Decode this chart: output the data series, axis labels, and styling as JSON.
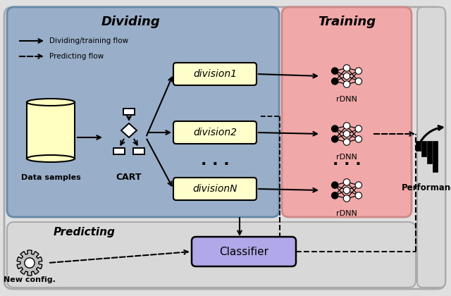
{
  "fig_width": 6.4,
  "fig_height": 4.2,
  "dpi": 100,
  "bg_color": "#e0e0e0",
  "dividing_bg": "#99aec8",
  "training_bg": "#f0a8a8",
  "division_box_color": "#ffffcc",
  "classifier_box_color": "#b0a8e8",
  "dividing_title": "Dividing",
  "training_title": "Training",
  "predicting_title": "Predicting",
  "performance_label": "Performance",
  "data_samples_label": "Data samples",
  "cart_label": "CART",
  "new_config_label": "New config.",
  "classifier_label": "Classifier",
  "division_labels": [
    "division1",
    "division2",
    "divisionN"
  ],
  "rdnn_labels": [
    "rDNN",
    "rDNN",
    "rDNN"
  ],
  "legend_solid": "Dividing/training flow",
  "legend_dashed": "Predicting flow"
}
